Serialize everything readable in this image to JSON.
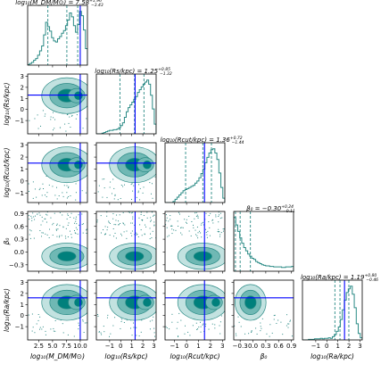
{
  "chart_data": {
    "type": "corner",
    "parameters": [
      {
        "key": "mdm",
        "label": "log10(M_DM/M⊙)",
        "axis_label": "log₁₀(M_DM/M⊙)",
        "range": [
          0.5,
          11.3
        ],
        "ticks": [
          2.5,
          5.0,
          7.5,
          10.0
        ],
        "tick_labels": [
          "2.5",
          "5.0",
          "7.5",
          "10.0"
        ],
        "median": 7.58,
        "err_plus": 1.96,
        "err_minus": 3.43,
        "title_main": "log₁₀(M_DM/M⊙) = 7.58",
        "title_plus": "+1.96",
        "title_minus": "−3.43",
        "truth": 10.0,
        "quantiles": [
          4.15,
          7.58,
          9.54
        ]
      },
      {
        "key": "rs",
        "label": "log10(Rs/kpc)",
        "axis_label": "log₁₀(Rs/kpc)",
        "range": [
          -2.2,
          3.2
        ],
        "ticks": [
          -1,
          0,
          1,
          2,
          3
        ],
        "tick_labels": [
          "−1",
          "0",
          "1",
          "2",
          "3"
        ],
        "median": 1.25,
        "err_plus": 0.85,
        "err_minus": 1.32,
        "title_main": "log₁₀(Rs/kpc) = 1.25",
        "title_plus": "+0.85",
        "title_minus": "−1.32",
        "truth": 1.3,
        "quantiles": [
          -0.07,
          1.25,
          2.1
        ]
      },
      {
        "key": "rcut",
        "label": "log10(Rcut/kpc)",
        "axis_label": "log₁₀(Rcut/kpc)",
        "range": [
          -1.8,
          3.2
        ],
        "ticks": [
          -1,
          0,
          1,
          2,
          3
        ],
        "tick_labels": [
          "−1",
          "0",
          "1",
          "2",
          "3"
        ],
        "median": 1.36,
        "err_plus": 0.72,
        "err_minus": 1.44,
        "title_main": "log₁₀(Rcut/kpc) = 1.36",
        "title_plus": "+0.72",
        "title_minus": "−1.44",
        "truth": 1.5,
        "quantiles": [
          -0.08,
          1.36,
          2.08
        ]
      },
      {
        "key": "beta",
        "label": "β0",
        "axis_label": "β₀",
        "range": [
          -0.45,
          0.95
        ],
        "ticks": [
          -0.3,
          0.0,
          0.3,
          0.6,
          0.9
        ],
        "tick_labels": [
          "−0.3",
          "0.0",
          "0.3",
          "0.6",
          "0.9"
        ],
        "median": -0.3,
        "err_plus": 0.24,
        "err_minus": 0.11,
        "title_main": "β₀ = −0.30",
        "title_plus": "+0.24",
        "title_minus": "−0.11",
        "truth": null,
        "quantiles": [
          -0.41,
          -0.3,
          -0.06
        ]
      },
      {
        "key": "ra",
        "label": "log10(Ra/kpc)",
        "axis_label": "log₁₀(Ra/kpc)",
        "range": [
          -2.2,
          3.2
        ],
        "ticks": [
          -1,
          0,
          1,
          2,
          3
        ],
        "tick_labels": [
          "−1",
          "0",
          "1",
          "2",
          "3"
        ],
        "median": 1.19,
        "err_plus": 0.8,
        "err_minus": 0.46,
        "title_main": "log₁₀(Ra/kpc) = 1.19",
        "title_plus": "+0.80",
        "title_minus": "−0.46",
        "truth": 1.6,
        "quantiles": [
          0.73,
          1.19,
          1.99
        ]
      }
    ],
    "histograms": {
      "mdm": [
        1,
        3,
        5,
        9,
        12,
        18,
        26,
        35,
        55,
        78,
        70,
        62,
        50,
        44,
        42,
        48,
        52,
        58,
        63,
        72,
        82,
        95,
        88,
        72,
        60,
        74,
        98,
        90,
        64,
        30
      ],
      "rs": [
        0,
        0,
        0,
        1,
        2,
        3,
        4,
        5,
        5,
        6,
        6,
        7,
        9,
        12,
        16,
        24,
        32,
        38,
        42,
        46,
        50,
        54,
        60,
        64,
        68,
        72,
        75,
        78,
        72,
        56,
        36,
        14
      ],
      "rcut": [
        0,
        0,
        0,
        0,
        2,
        6,
        10,
        14,
        18,
        22,
        24,
        26,
        28,
        30,
        32,
        36,
        40,
        46,
        54,
        62,
        74,
        84,
        92,
        98,
        100,
        92,
        80,
        55,
        28,
        8
      ],
      "beta": [
        100,
        86,
        74,
        62,
        52,
        44,
        38,
        32,
        28,
        24,
        22,
        18,
        16,
        14,
        12,
        11,
        10,
        10,
        9,
        9,
        8,
        8,
        8,
        8,
        7,
        7,
        8,
        8,
        8,
        9
      ],
      "ra": [
        0,
        0,
        0,
        1,
        1,
        1,
        2,
        2,
        2,
        3,
        2,
        3,
        3,
        4,
        3,
        6,
        10,
        16,
        24,
        38,
        56,
        74,
        88,
        95,
        100,
        85,
        60,
        30,
        12,
        4
      ]
    },
    "truth_color": "#0000ff",
    "palette": {
      "dark": "#00807c",
      "light": "#c2e2e0",
      "line": "#2a8a85"
    }
  }
}
